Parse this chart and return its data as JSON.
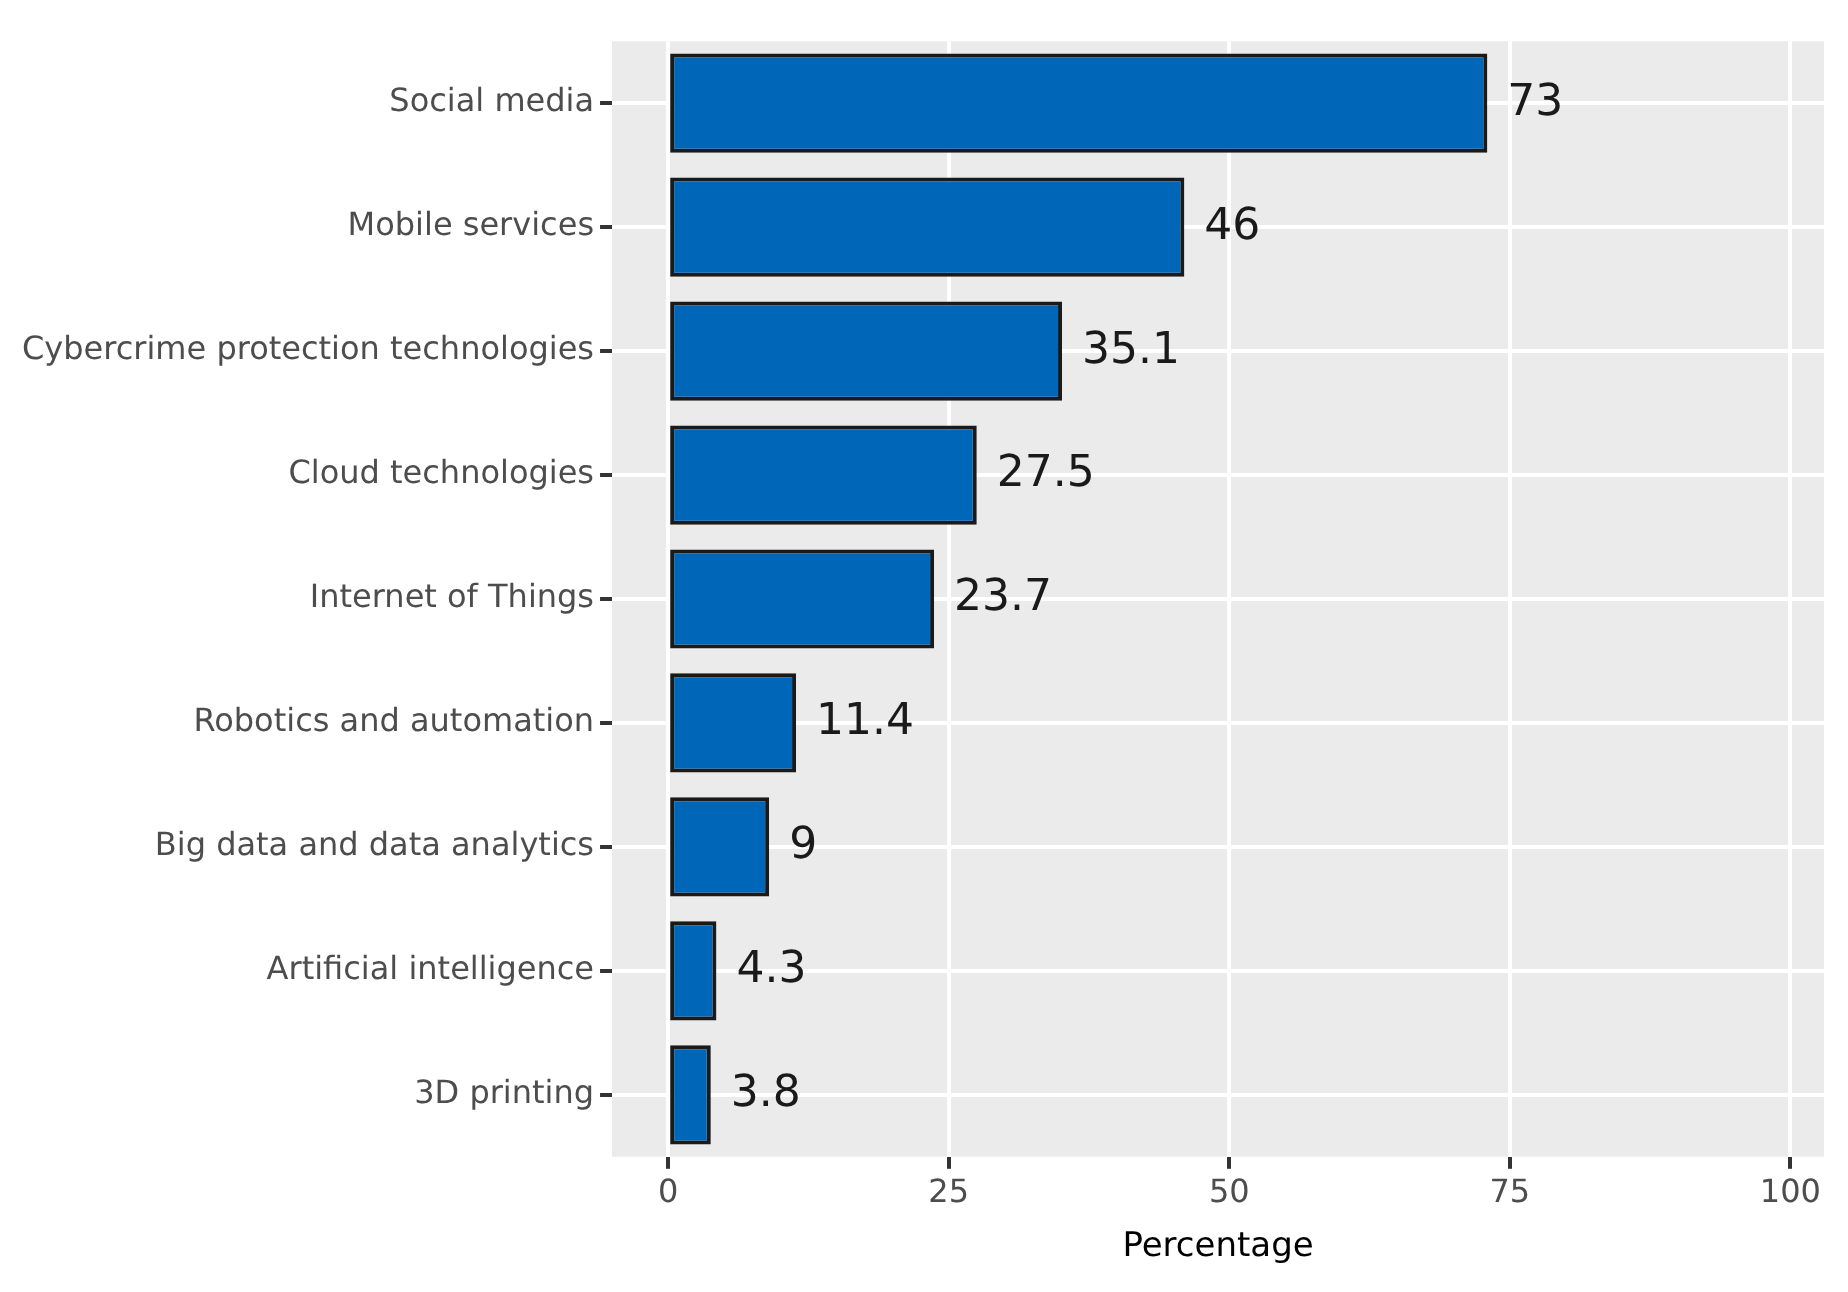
{
  "chart_data": {
    "type": "bar",
    "orientation": "horizontal",
    "xlabel": "Percentage",
    "categories": [
      "Social media",
      "Mobile services",
      "Cybercrime protection technologies",
      "Cloud technologies",
      "Internet of Things",
      "Robotics and automation",
      "Big data and data analytics",
      "Artificial intelligence",
      "3D printing"
    ],
    "values": [
      73,
      46,
      35.1,
      27.5,
      23.7,
      11.4,
      9,
      4.3,
      3.8
    ],
    "color": "#0066b8",
    "xlim": [
      -5,
      103
    ],
    "xticks": [
      0,
      25,
      50,
      75,
      100
    ],
    "grid": true,
    "data_labels": true
  }
}
